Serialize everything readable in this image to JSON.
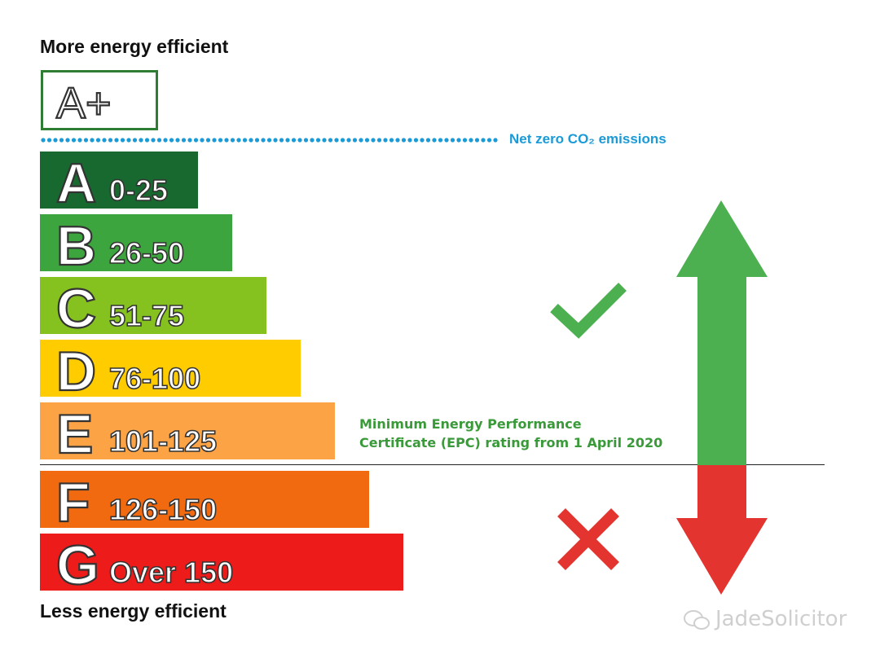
{
  "headings": {
    "top": "More energy efficient",
    "bottom": "Less energy efficient"
  },
  "aplus": {
    "label": "A+"
  },
  "net_zero": {
    "label": "Net zero CO₂ emissions",
    "color": "#1a9ad6"
  },
  "ratings": [
    {
      "letter": "A",
      "range": "0-25",
      "color": "#17692f"
    },
    {
      "letter": "B",
      "range": "26-50",
      "color": "#3da53d"
    },
    {
      "letter": "C",
      "range": "51-75",
      "color": "#86c21f"
    },
    {
      "letter": "D",
      "range": "76-100",
      "color": "#ffcc00"
    },
    {
      "letter": "E",
      "range": "101-125",
      "color": "#fba345"
    },
    {
      "letter": "F",
      "range": "126-150",
      "color": "#f26a10"
    },
    {
      "letter": "G",
      "range": "Over 150",
      "color": "#ee1b1b"
    }
  ],
  "minimum_epc": {
    "line1": "Minimum Energy Performance",
    "line2": "Certificate (EPC) rating from 1 April 2020",
    "color": "#3a9a3a"
  },
  "indicators": {
    "pass_icon": "check-icon",
    "fail_icon": "cross-icon",
    "up_color": "#4caf50",
    "down_color": "#e3342f"
  },
  "watermark": {
    "text": "JadeSolicitor",
    "icon": "wechat-icon"
  }
}
